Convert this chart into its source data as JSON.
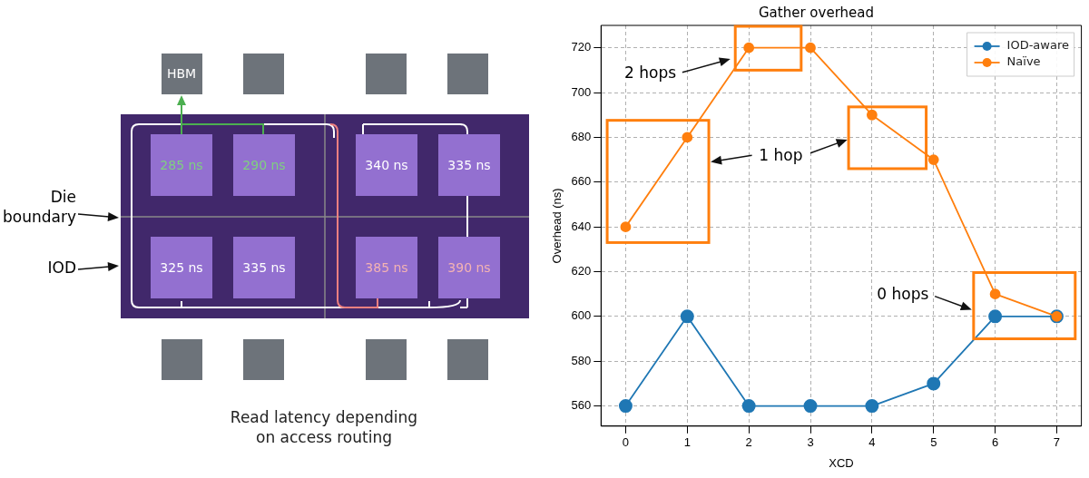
{
  "chart_data": [
    {
      "type": "other",
      "annotations": [
        "HBM",
        "285 ns",
        "290 ns",
        "340 ns",
        "335 ns",
        "325 ns",
        "335 ns",
        "385 ns",
        "390 ns",
        "Die boundary",
        "IOD",
        "Read latency depending on access routing"
      ]
    },
    {
      "type": "line",
      "title": "Gather overhead",
      "xlabel": "XCD",
      "ylabel": "Overhead (ns)",
      "x": [
        0,
        1,
        2,
        3,
        4,
        5,
        6,
        7
      ],
      "series": [
        {
          "name": "IOD-aware",
          "color": "#1f77b4",
          "values": [
            560,
            600,
            560,
            560,
            560,
            570,
            600,
            600
          ]
        },
        {
          "name": "Naïve",
          "color": "#ff7f0e",
          "values": [
            640,
            680,
            720,
            720,
            690,
            670,
            610,
            600
          ]
        }
      ],
      "xlim": [
        -0.4,
        7.4
      ],
      "xticks": [
        0,
        1,
        2,
        3,
        4,
        5,
        6,
        7
      ],
      "ylim": [
        551,
        730
      ],
      "yticks": [
        560,
        580,
        600,
        620,
        640,
        660,
        680,
        700,
        720
      ],
      "grid": true,
      "legend": "top right",
      "marker": "circle",
      "line_style": "solid",
      "annotations": [
        "2 hops",
        "1 hop",
        "0 hops"
      ]
    }
  ]
}
